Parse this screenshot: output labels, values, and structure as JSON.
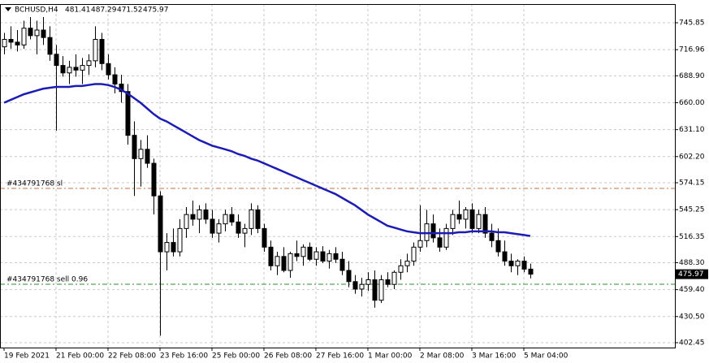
{
  "chart_data": {
    "type": "candlestick",
    "title": "BCHUSD,H4",
    "categories": [
      "19 Feb 2021",
      null,
      null,
      null,
      null,
      null,
      null,
      null,
      "21 Feb 00:00",
      null,
      null,
      null,
      null,
      null,
      null,
      null,
      "22 Feb 08:00",
      null,
      null,
      null,
      null,
      null,
      null,
      null,
      "23 Feb 16:00",
      null,
      null,
      null,
      null,
      null,
      null,
      null,
      "25 Feb 00:00",
      null,
      null,
      null,
      null,
      null,
      null,
      null,
      "26 Feb 08:00",
      null,
      null,
      null,
      null,
      null,
      null,
      null,
      "27 Feb 16:00",
      null,
      null,
      null,
      null,
      null,
      null,
      null,
      "1 Mar 00:00",
      null,
      null,
      null,
      null,
      null,
      null,
      null,
      "2 Mar 08:00",
      null,
      null,
      null,
      null,
      null,
      null,
      null,
      "3 Mar 16:00",
      null,
      null,
      null,
      null,
      null,
      null,
      null,
      "5 Mar 04:00",
      null
    ],
    "open": [
      720,
      728,
      725,
      722,
      740,
      732,
      738,
      730,
      712,
      700,
      692,
      698,
      695,
      700,
      705,
      728,
      702,
      690,
      680,
      672,
      625,
      600,
      610,
      595,
      560,
      500,
      510,
      500,
      525,
      540,
      535,
      545,
      535,
      520,
      530,
      540,
      532,
      520,
      525,
      545,
      525,
      505,
      485,
      495,
      480,
      498,
      495,
      505,
      492,
      500,
      490,
      498,
      492,
      480,
      468,
      460,
      465,
      470,
      448,
      470,
      465,
      478,
      485,
      490,
      505,
      512,
      530,
      515,
      505,
      525,
      540,
      535,
      545,
      525,
      540,
      520,
      512,
      500,
      490,
      485,
      490,
      481.41
    ],
    "high": [
      735,
      742,
      738,
      748,
      752,
      748,
      752,
      742,
      722,
      710,
      705,
      712,
      708,
      712,
      742,
      735,
      712,
      698,
      690,
      680,
      640,
      620,
      625,
      600,
      565,
      520,
      525,
      535,
      548,
      555,
      550,
      552,
      545,
      535,
      545,
      548,
      540,
      530,
      552,
      550,
      530,
      512,
      500,
      505,
      500,
      512,
      508,
      510,
      505,
      506,
      502,
      505,
      500,
      490,
      475,
      472,
      478,
      480,
      475,
      478,
      480,
      492,
      498,
      510,
      550,
      545,
      540,
      525,
      530,
      545,
      555,
      548,
      552,
      545,
      548,
      530,
      525,
      512,
      498,
      492,
      495,
      487.29
    ],
    "low": [
      712,
      718,
      715,
      718,
      728,
      712,
      722,
      705,
      630,
      688,
      680,
      688,
      680,
      690,
      698,
      695,
      685,
      670,
      660,
      615,
      560,
      570,
      590,
      540,
      410,
      480,
      495,
      495,
      515,
      528,
      520,
      530,
      515,
      510,
      522,
      528,
      515,
      505,
      518,
      520,
      500,
      480,
      475,
      478,
      472,
      490,
      485,
      490,
      485,
      488,
      482,
      488,
      475,
      462,
      455,
      452,
      458,
      440,
      445,
      462,
      460,
      470,
      478,
      485,
      500,
      505,
      510,
      500,
      502,
      518,
      530,
      525,
      520,
      520,
      515,
      505,
      495,
      485,
      478,
      475,
      478,
      471.52
    ],
    "close": [
      728,
      725,
      722,
      740,
      732,
      738,
      730,
      712,
      700,
      692,
      698,
      695,
      700,
      705,
      728,
      702,
      690,
      680,
      672,
      625,
      600,
      610,
      595,
      560,
      500,
      510,
      500,
      525,
      540,
      535,
      545,
      535,
      520,
      530,
      540,
      532,
      520,
      525,
      545,
      525,
      505,
      485,
      495,
      480,
      498,
      495,
      505,
      492,
      500,
      490,
      498,
      492,
      480,
      468,
      460,
      465,
      470,
      448,
      470,
      465,
      478,
      485,
      490,
      505,
      512,
      530,
      515,
      505,
      525,
      540,
      535,
      545,
      525,
      540,
      520,
      512,
      500,
      490,
      485,
      490,
      481.41,
      475.97
    ],
    "moving_average": {
      "color": "#1c1cb4",
      "values": [
        660,
        663,
        666,
        669,
        671,
        673,
        675,
        676,
        677,
        677,
        677,
        678,
        678,
        679,
        680,
        680,
        679,
        677,
        674,
        670,
        665,
        660,
        654,
        648,
        643,
        640,
        636,
        632,
        628,
        624,
        620,
        617,
        614,
        612,
        610,
        608,
        605,
        603,
        600,
        598,
        595,
        592,
        589,
        586,
        583,
        580,
        577,
        574,
        571,
        568,
        565,
        562,
        558,
        554,
        550,
        545,
        540,
        536,
        532,
        528,
        526,
        524,
        522,
        521,
        520,
        520,
        520,
        520,
        520,
        520,
        521,
        521,
        522,
        522,
        522,
        522,
        521,
        521,
        520,
        519,
        518,
        517
      ]
    },
    "levels": [
      {
        "label": "#434791768 sl",
        "value": 568,
        "color": "#c8703c"
      },
      {
        "label": "#434791768 sell 0.96",
        "value": 465.2,
        "color": "#2e8b2e"
      }
    ],
    "ylim": [
      397.2,
      765.9
    ],
    "yticks": [
      745.85,
      716.96,
      {
        "value": 688.9,
        "label": "688.90"
      },
      {
        "value": 660,
        "label": "660.00"
      },
      {
        "value": 631.1,
        "label": "631.10"
      },
      {
        "value": 602.2,
        "label": "602.20"
      },
      574.15,
      545.25,
      516.35,
      {
        "value": 488.3,
        "label": "488.30"
      },
      {
        "value": 459.4,
        "label": "459.40"
      },
      {
        "value": 430.5,
        "label": "430.50"
      },
      402.45
    ],
    "grid": true
  }
}
